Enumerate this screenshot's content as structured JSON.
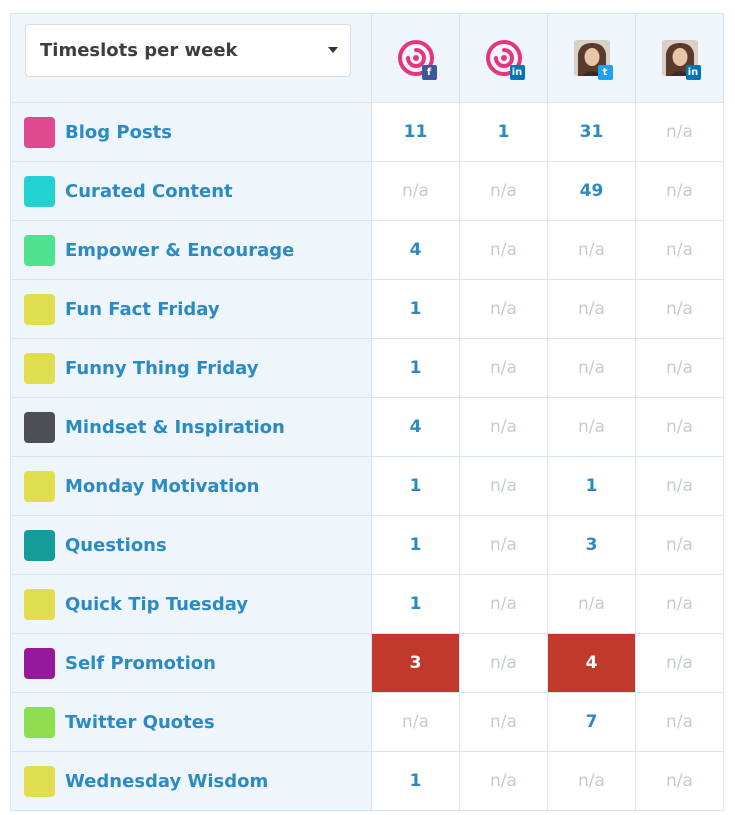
{
  "dropdown": {
    "selected": "Timeslots per week"
  },
  "accounts": [
    {
      "avatar": "brand-spiral",
      "network": "facebook",
      "badge": "f",
      "badge_color": "#3b5998"
    },
    {
      "avatar": "brand-spiral",
      "network": "linkedin",
      "badge": "in",
      "badge_color": "#0077b5"
    },
    {
      "avatar": "person-photo",
      "network": "twitter",
      "badge": "t",
      "badge_color": "#1da1f2"
    },
    {
      "avatar": "person-photo",
      "network": "linkedin",
      "badge": "in",
      "badge_color": "#0077b5"
    }
  ],
  "colors": {
    "spiral": "#e6357f",
    "over_limit": "#c0392b",
    "link": "#2b8ac4",
    "na": "#c4ccd3"
  },
  "categories": [
    {
      "name": "Blog Posts",
      "color": "#e0488f",
      "values": [
        "11",
        "1",
        "31",
        "n/a"
      ],
      "over": [
        false,
        false,
        false,
        false
      ]
    },
    {
      "name": "Curated Content",
      "color": "#22d1d1",
      "values": [
        "n/a",
        "n/a",
        "49",
        "n/a"
      ],
      "over": [
        false,
        false,
        false,
        false
      ]
    },
    {
      "name": "Empower & Encourage",
      "color": "#4fe090",
      "values": [
        "4",
        "n/a",
        "n/a",
        "n/a"
      ],
      "over": [
        false,
        false,
        false,
        false
      ]
    },
    {
      "name": "Fun Fact Friday",
      "color": "#e0de4e",
      "values": [
        "1",
        "n/a",
        "n/a",
        "n/a"
      ],
      "over": [
        false,
        false,
        false,
        false
      ]
    },
    {
      "name": "Funny Thing Friday",
      "color": "#e0de4e",
      "values": [
        "1",
        "n/a",
        "n/a",
        "n/a"
      ],
      "over": [
        false,
        false,
        false,
        false
      ]
    },
    {
      "name": "Mindset & Inspiration",
      "color": "#4c4f55",
      "values": [
        "4",
        "n/a",
        "n/a",
        "n/a"
      ],
      "over": [
        false,
        false,
        false,
        false
      ]
    },
    {
      "name": "Monday Motivation",
      "color": "#e0de4e",
      "values": [
        "1",
        "n/a",
        "1",
        "n/a"
      ],
      "over": [
        false,
        false,
        false,
        false
      ]
    },
    {
      "name": "Questions",
      "color": "#159c99",
      "values": [
        "1",
        "n/a",
        "3",
        "n/a"
      ],
      "over": [
        false,
        false,
        false,
        false
      ]
    },
    {
      "name": "Quick Tip Tuesday",
      "color": "#e0de4e",
      "values": [
        "1",
        "n/a",
        "n/a",
        "n/a"
      ],
      "over": [
        false,
        false,
        false,
        false
      ]
    },
    {
      "name": "Self Promotion",
      "color": "#951a9b",
      "values": [
        "3",
        "n/a",
        "4",
        "n/a"
      ],
      "over": [
        true,
        false,
        true,
        false
      ]
    },
    {
      "name": "Twitter Quotes",
      "color": "#8ede4f",
      "values": [
        "n/a",
        "n/a",
        "7",
        "n/a"
      ],
      "over": [
        false,
        false,
        false,
        false
      ]
    },
    {
      "name": "Wednesday Wisdom",
      "color": "#e0de4e",
      "values": [
        "1",
        "n/a",
        "n/a",
        "n/a"
      ],
      "over": [
        false,
        false,
        false,
        false
      ]
    }
  ]
}
